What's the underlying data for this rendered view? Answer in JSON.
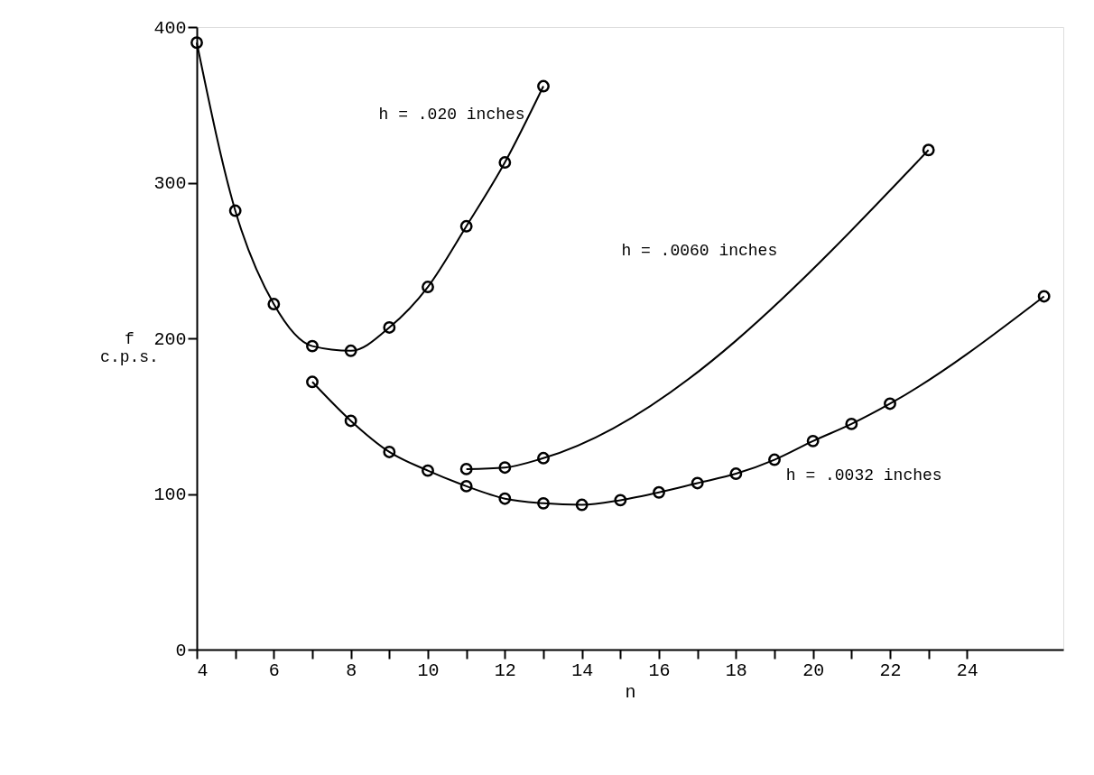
{
  "chart_data": {
    "type": "line",
    "xlabel": "n",
    "ylabel": "f\nc.p.s.",
    "xlim": [
      4,
      26.5
    ],
    "ylim": [
      0,
      400
    ],
    "xticks": [
      4,
      {
        "value": 5,
        "label": null
      },
      6,
      {
        "value": 7,
        "label": null
      },
      8,
      {
        "value": 9,
        "label": null
      },
      10,
      {
        "value": 11,
        "label": null
      },
      12,
      {
        "value": 13,
        "label": null
      },
      14,
      {
        "value": 15,
        "label": null
      },
      16,
      {
        "value": 17,
        "label": null
      },
      18,
      {
        "value": 19,
        "label": null
      },
      20,
      {
        "value": 21,
        "label": null
      },
      22,
      {
        "value": 23,
        "label": null
      },
      24
    ],
    "yticks": [
      0,
      100,
      200,
      300,
      400
    ],
    "grid": false,
    "marker": "circle",
    "line_style": "solid",
    "series": [
      {
        "name": "h = .020 inches",
        "color": "#000000",
        "x": [
          4,
          5,
          6,
          7,
          8,
          9,
          10,
          11,
          12,
          13
        ],
        "values": [
          390,
          282,
          222,
          195,
          192,
          207,
          233,
          272,
          313,
          362
        ]
      },
      {
        "name": "h = .0060 inches",
        "color": "#000000",
        "x": [
          11,
          12,
          13,
          23
        ],
        "values": [
          116,
          117,
          123,
          321
        ]
      },
      {
        "name": "h = .0032 inches",
        "color": "#000000",
        "x": [
          7,
          8,
          9,
          10,
          11,
          12,
          13,
          14,
          15,
          16,
          17,
          18,
          19,
          20,
          21,
          22,
          26
        ],
        "values": [
          172,
          147,
          127,
          115,
          105,
          97,
          94,
          93,
          96,
          101,
          107,
          113,
          122,
          134,
          145,
          158,
          227
        ]
      }
    ]
  }
}
